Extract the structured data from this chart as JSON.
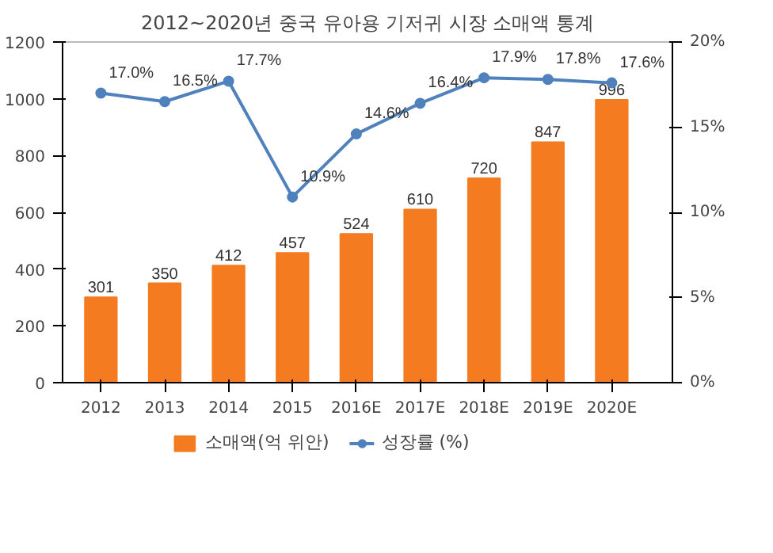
{
  "chart_data": {
    "type": "bar",
    "title": "2012~2020년 중국 유아용 기저귀 시장 소매액 통계",
    "categories": [
      "2012",
      "2013",
      "2014",
      "2015",
      "2016E",
      "2017E",
      "2018E",
      "2019E",
      "2020E"
    ],
    "series": [
      {
        "name": "소매액(억 위안)",
        "color": "#f47b20",
        "values": [
          301,
          350,
          412,
          457,
          524,
          610,
          720,
          847,
          996
        ],
        "value_labels": [
          "301",
          "350",
          "412",
          "457",
          "524",
          "610",
          "720",
          "847",
          "996"
        ]
      },
      {
        "name": "성장률 (%)",
        "type": "line",
        "axis": "y2",
        "color": "#4f81bd",
        "marker": "circle",
        "values": [
          17.0,
          16.5,
          17.7,
          10.9,
          14.6,
          16.4,
          17.9,
          17.8,
          17.6
        ],
        "value_labels": [
          "17.0%",
          "16.5%",
          "17.7%",
          "10.9%",
          "14.6%",
          "16.4%",
          "17.9%",
          "17.8%",
          "17.6%"
        ]
      }
    ],
    "ylim": [
      0,
      1200
    ],
    "yticks": [
      0,
      200,
      400,
      600,
      800,
      1000,
      1200
    ],
    "y2lim": [
      0,
      20
    ],
    "y2ticks": [
      {
        "value": 0,
        "label": "0%"
      },
      {
        "value": 5,
        "label": "5%"
      },
      {
        "value": 10,
        "label": "10%"
      },
      {
        "value": 15,
        "label": "15%"
      },
      {
        "value": 20,
        "label": "20%"
      }
    ],
    "grid": false,
    "legend": "bottom"
  }
}
